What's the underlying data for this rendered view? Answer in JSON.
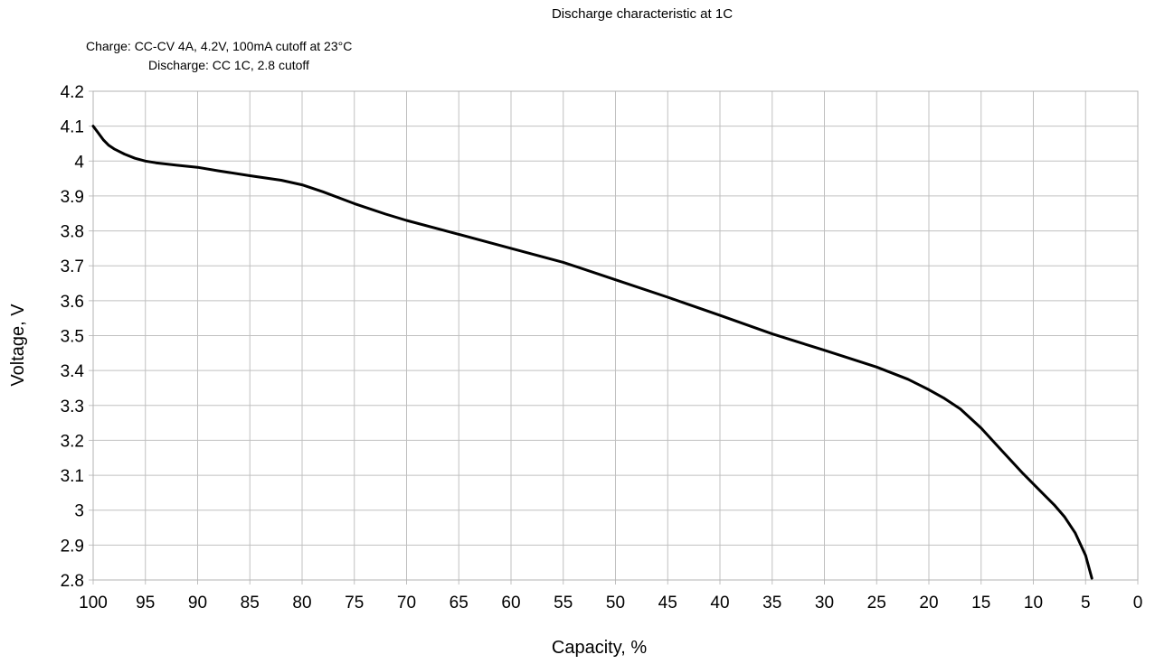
{
  "chart_data": {
    "type": "line",
    "title": "Discharge characteristic at 1C",
    "annotations": [
      "Charge: CC-CV 4A, 4.2V, 100mA cutoff at 23°C",
      "Discharge: CC 1C, 2.8 cutoff"
    ],
    "xlabel": "Capacity, %",
    "ylabel": "Voltage, V",
    "xlim": [
      100,
      0
    ],
    "ylim": [
      2.8,
      4.2
    ],
    "x_reversed": true,
    "grid": true,
    "legend": "none",
    "xticks": [
      "100",
      "95",
      "90",
      "85",
      "80",
      "75",
      "70",
      "65",
      "60",
      "55",
      "50",
      "45",
      "40",
      "35",
      "30",
      "25",
      "20",
      "15",
      "10",
      "5",
      "0"
    ],
    "yticks": [
      "2.8",
      "2.9",
      "3",
      "3.1",
      "3.2",
      "3.3",
      "3.4",
      "3.5",
      "3.6",
      "3.7",
      "3.8",
      "3.9",
      "4",
      "4.1",
      "4.2"
    ],
    "series": [
      {
        "color": "#000000",
        "x": [
          100,
          99.5,
          99,
          98.5,
          98,
          97,
          96,
          95,
          94,
          92,
          90,
          88,
          85,
          82,
          80,
          78,
          75,
          72,
          70,
          65,
          60,
          55,
          50,
          45,
          40,
          35,
          30,
          25,
          22,
          20,
          18.5,
          17,
          15,
          13,
          11,
          10,
          9,
          8,
          7,
          6,
          5,
          4.4
        ],
        "y": [
          4.1,
          4.08,
          4.06,
          4.045,
          4.035,
          4.02,
          4.008,
          4.0,
          3.995,
          3.988,
          3.982,
          3.972,
          3.958,
          3.945,
          3.932,
          3.912,
          3.878,
          3.848,
          3.83,
          3.79,
          3.75,
          3.71,
          3.66,
          3.61,
          3.558,
          3.505,
          3.458,
          3.41,
          3.375,
          3.345,
          3.32,
          3.29,
          3.235,
          3.17,
          3.105,
          3.075,
          3.045,
          3.015,
          2.98,
          2.935,
          2.87,
          2.805
        ]
      }
    ]
  }
}
